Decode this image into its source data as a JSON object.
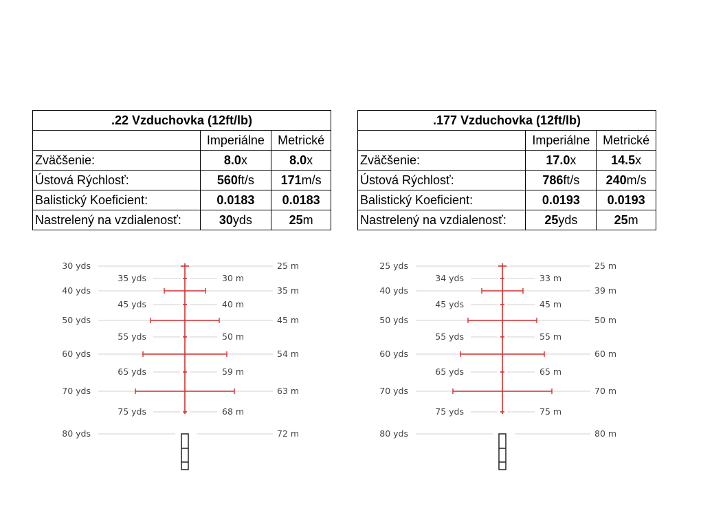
{
  "tables": [
    {
      "title": ".22 Vzduchovka (12ft/lb)",
      "headers": [
        "",
        "Imperiálne",
        "Metrické"
      ],
      "rows": [
        {
          "label": "Zväčšenie:",
          "imp_val": "8.0",
          "imp_unit": "x",
          "met_val": "8.0",
          "met_unit": "x"
        },
        {
          "label": "Ústová Rýchlosť:",
          "imp_val": "560",
          "imp_unit": "ft/s",
          "met_val": "171",
          "met_unit": "m/s"
        },
        {
          "label": "Balistický Koeficient:",
          "imp_val": "0.0183",
          "imp_unit": "",
          "met_val": "0.0183",
          "met_unit": ""
        },
        {
          "label": "Nastrelený na vzdialenosť:",
          "imp_val": "30",
          "imp_unit": "yds",
          "met_val": "25",
          "met_unit": "m"
        }
      ]
    },
    {
      "title": ".177 Vzduchovka (12ft/lb)",
      "headers": [
        "",
        "Imperiálne",
        "Metrické"
      ],
      "rows": [
        {
          "label": "Zväčšenie:",
          "imp_val": "17.0",
          "imp_unit": "x",
          "met_val": "14.5",
          "met_unit": "x"
        },
        {
          "label": "Ústová Rýchlosť:",
          "imp_val": "786",
          "imp_unit": "ft/s",
          "met_val": "240",
          "met_unit": "m/s"
        },
        {
          "label": "Balistický Koeficient:",
          "imp_val": "0.0193",
          "imp_unit": "",
          "met_val": "0.0193",
          "met_unit": ""
        },
        {
          "label": "Nastrelený na vzdialenosť:",
          "imp_val": "25",
          "imp_unit": "yds",
          "met_val": "25",
          "met_unit": "m"
        }
      ]
    }
  ],
  "reticles": [
    {
      "rows": [
        {
          "yds": "30 yds",
          "m": "25 m",
          "major": true
        },
        {
          "yds": "35 yds",
          "m": "30 m",
          "major": false
        },
        {
          "yds": "40 yds",
          "m": "35 m",
          "major": true
        },
        {
          "yds": "45 yds",
          "m": "40 m",
          "major": false
        },
        {
          "yds": "50 yds",
          "m": "45 m",
          "major": true
        },
        {
          "yds": "55 yds",
          "m": "50 m",
          "major": false
        },
        {
          "yds": "60 yds",
          "m": "54 m",
          "major": true
        },
        {
          "yds": "65 yds",
          "m": "59 m",
          "major": false
        },
        {
          "yds": "70 yds",
          "m": "63 m",
          "major": true
        },
        {
          "yds": "75 yds",
          "m": "68 m",
          "major": false
        },
        {
          "yds": "80 yds",
          "m": "72 m",
          "major": true
        }
      ]
    },
    {
      "rows": [
        {
          "yds": "25 yds",
          "m": "25 m",
          "major": true
        },
        {
          "yds": "34 yds",
          "m": "33 m",
          "major": false
        },
        {
          "yds": "40 yds",
          "m": "39 m",
          "major": true
        },
        {
          "yds": "45 yds",
          "m": "45 m",
          "major": false
        },
        {
          "yds": "50 yds",
          "m": "50 m",
          "major": true
        },
        {
          "yds": "55 yds",
          "m": "55 m",
          "major": false
        },
        {
          "yds": "60 yds",
          "m": "60 m",
          "major": true
        },
        {
          "yds": "65 yds",
          "m": "65 m",
          "major": false
        },
        {
          "yds": "70 yds",
          "m": "70 m",
          "major": true
        },
        {
          "yds": "75 yds",
          "m": "75 m",
          "major": false
        },
        {
          "yds": "80 yds",
          "m": "80 m",
          "major": true
        }
      ]
    }
  ],
  "colors": {
    "reticle": "#d32f2f",
    "guide": "#d9d9d9",
    "post": "#222222"
  }
}
